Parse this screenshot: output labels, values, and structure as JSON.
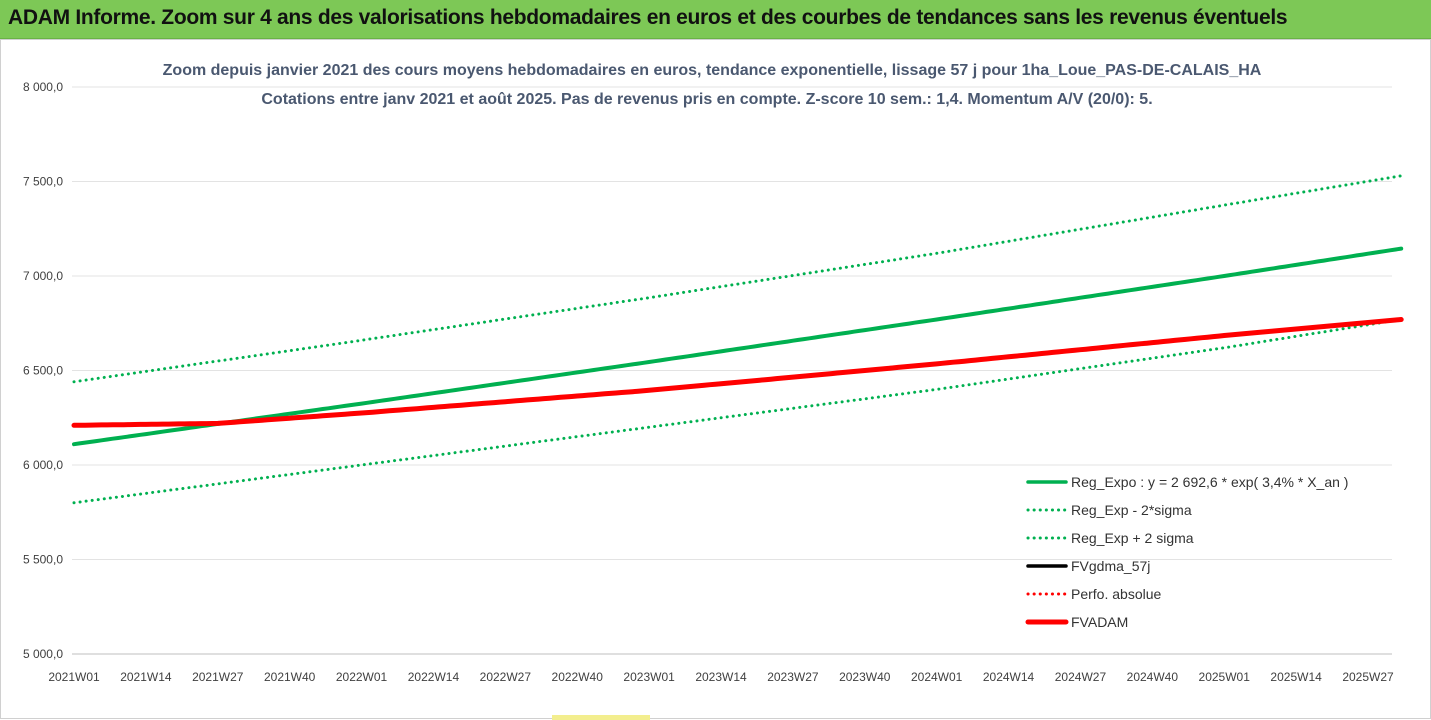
{
  "header": {
    "title": "ADAM Informe. Zoom sur 4 ans des valorisations hebdomadaires en euros et des courbes de tendances sans les revenus éventuels",
    "bg_color": "#7dc856"
  },
  "chart_data": {
    "type": "line",
    "title": "Zoom depuis janvier 2021 des cours moyens hebdomadaires en euros, tendance exponentielle, lissage 57 j pour 1ha_Loue_PAS-DE-CALAIS_HA",
    "subtitle": "Cotations entre janv 2021 et août 2025.  Pas de revenus pris en compte. Z-score 10 sem.: 1,4. Momentum A/V (20/0): 5.",
    "xlabel": "",
    "ylabel": "",
    "ylim": [
      5000,
      8000
    ],
    "yticks": [
      "8 000,0",
      "7 500,0",
      "7 000,0",
      "6 500,0",
      "6 000,0",
      "5 500,0",
      "5 000,0"
    ],
    "ytick_values": [
      8000,
      7500,
      7000,
      6500,
      6000,
      5500,
      5000
    ],
    "xticks": [
      "2021W01",
      "2021W14",
      "2021W27",
      "2021W40",
      "2022W01",
      "2022W14",
      "2022W27",
      "2022W40",
      "2023W01",
      "2023W14",
      "2023W27",
      "2023W40",
      "2024W01",
      "2024W14",
      "2024W27",
      "2024W40",
      "2025W01",
      "2025W14",
      "2025W27"
    ],
    "grid": true,
    "legend_position": "bottom-right",
    "series": [
      {
        "name": "Reg_Expo : y = 2 692,6 * exp( 3,4% *  X_an )",
        "style": "solid",
        "color": "#00b050",
        "x": [
          "2021W01",
          "2022W01",
          "2023W01",
          "2024W01",
          "2025W01",
          "2025W33"
        ],
        "values": [
          6110,
          6325,
          6545,
          6770,
          7000,
          7145
        ]
      },
      {
        "name": "Reg_Exp - 2*sigma",
        "style": "dotted",
        "color": "#00b050",
        "x": [
          "2021W01",
          "2022W01",
          "2023W01",
          "2024W01",
          "2025W01",
          "2025W33"
        ],
        "values": [
          5800,
          6000,
          6200,
          6400,
          6620,
          6770
        ]
      },
      {
        "name": "Reg_Exp + 2 sigma",
        "style": "dotted",
        "color": "#00b050",
        "x": [
          "2021W01",
          "2022W01",
          "2023W01",
          "2024W01",
          "2025W01",
          "2025W33"
        ],
        "values": [
          6440,
          6660,
          6885,
          7120,
          7375,
          7530
        ]
      },
      {
        "name": "FVgdma_57j",
        "style": "solid",
        "color": "#000000",
        "x": [
          "2021W01",
          "2021W14",
          "2021W27",
          "2022W01",
          "2023W01",
          "2024W01",
          "2025W01",
          "2025W33"
        ],
        "values": [
          6210,
          6215,
          6220,
          6275,
          6395,
          6535,
          6685,
          6770
        ]
      },
      {
        "name": "Perfo. absolue",
        "style": "dotted",
        "color": "#ff0000",
        "x": [
          "2021W01",
          "2021W14",
          "2021W27",
          "2022W01",
          "2023W01",
          "2024W01",
          "2025W01",
          "2025W33"
        ],
        "values": [
          6210,
          6215,
          6220,
          6275,
          6395,
          6535,
          6685,
          6770
        ]
      },
      {
        "name": "FVADAM",
        "style": "solid-thick",
        "color": "#ff0000",
        "x": [
          "2021W01",
          "2021W14",
          "2021W27",
          "2022W01",
          "2023W01",
          "2024W01",
          "2025W01",
          "2025W33"
        ],
        "values": [
          6210,
          6215,
          6220,
          6275,
          6395,
          6535,
          6685,
          6770
        ]
      }
    ]
  }
}
